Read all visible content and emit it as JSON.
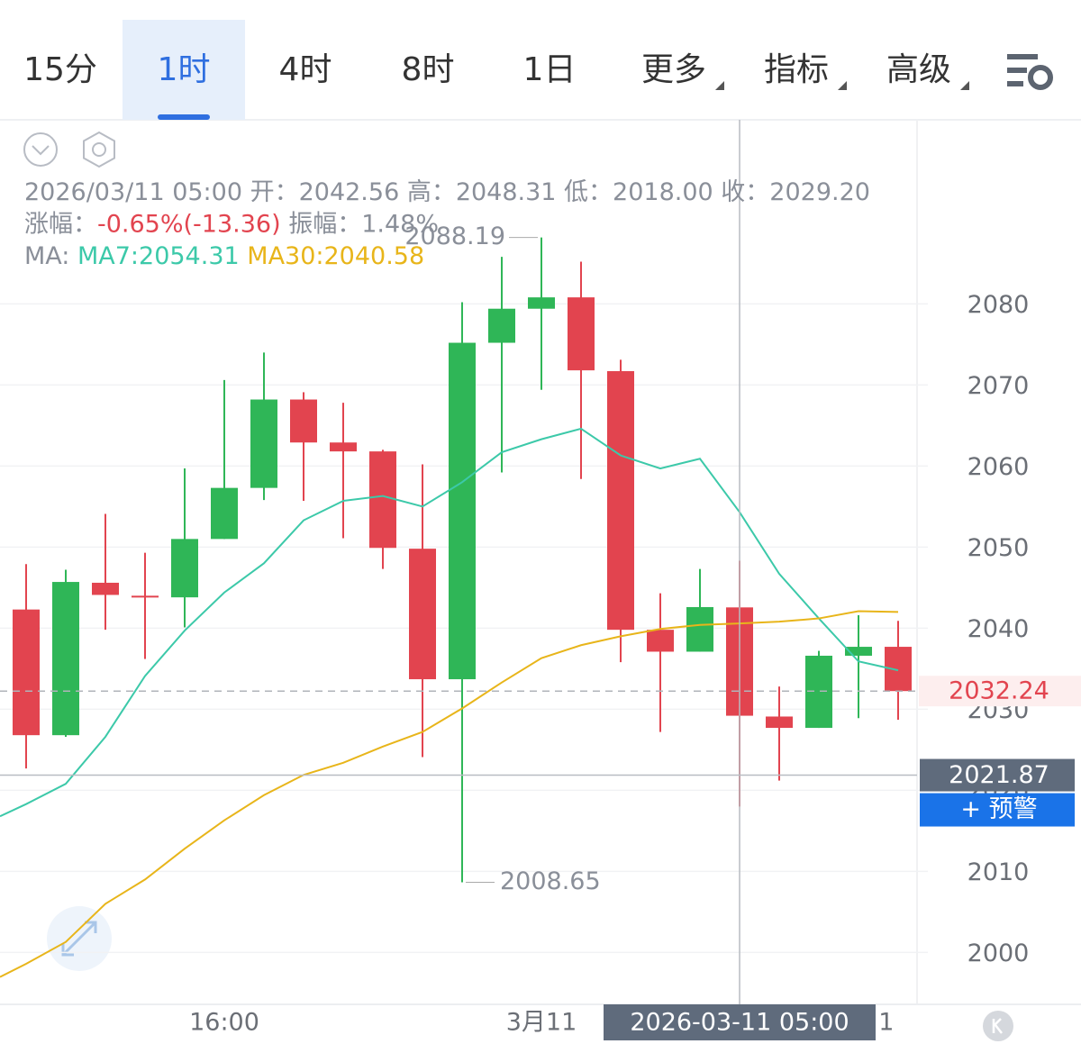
{
  "tabs": [
    "15分",
    "1时",
    "4时",
    "8时",
    "1日",
    "更多",
    "指标",
    "高级"
  ],
  "active_tab": 1,
  "info": {
    "lines": [
      [
        {
          "text": "2026/03/11 05:00 开：2042.56 高：2048.31 低：2018.00 收：2029.20",
          "color": "#8a8f99"
        }
      ],
      [
        {
          "text": "涨幅：",
          "color": "#8a8f99"
        },
        {
          "text": "-0.65%(-13.36)",
          "color": "#e2444f"
        },
        {
          "text": " 振幅：1.48%",
          "color": "#8a8f99"
        }
      ],
      [
        {
          "text": "MA: ",
          "color": "#8a8f99"
        },
        {
          "text": "MA7:2054.31",
          "color": "#3cc9a9"
        },
        {
          "text": " MA30:2040.58",
          "color": "#e8b51a"
        }
      ]
    ]
  },
  "chart_data": {
    "type": "candlestick",
    "categories": [
      null,
      null,
      null,
      null,
      null,
      null,
      null,
      null,
      null,
      null,
      null,
      null,
      null,
      null,
      null,
      null,
      null,
      null,
      null,
      null,
      null,
      null,
      null
    ],
    "open": [
      2042.3,
      2026.8,
      2045.6,
      2044.0,
      2043.8,
      2051.0,
      2057.3,
      2068.2,
      2062.9,
      2061.8,
      2049.8,
      2033.7,
      2075.2,
      2079.4,
      2080.8,
      2071.7,
      2039.8,
      2037.1,
      2042.56,
      2029.1,
      2027.7,
      2036.6,
      2037.7
    ],
    "high": [
      2047.9,
      2047.2,
      2054.1,
      2049.3,
      2059.7,
      2070.6,
      2074.0,
      2069.1,
      2067.8,
      2062.0,
      2060.2,
      2080.2,
      2085.8,
      2088.19,
      2085.2,
      2073.1,
      2044.3,
      2047.3,
      2048.31,
      2032.8,
      2037.2,
      2041.6,
      2040.9
    ],
    "low": [
      2022.7,
      2026.6,
      2039.8,
      2036.2,
      2040.1,
      2051.0,
      2055.8,
      2055.7,
      2051.1,
      2047.3,
      2024.1,
      2008.65,
      2059.2,
      2069.4,
      2058.4,
      2035.8,
      2027.2,
      2037.1,
      2018.0,
      2021.2,
      2027.7,
      2028.9,
      2028.7
    ],
    "close": [
      2026.8,
      2045.7,
      2044.1,
      2043.8,
      2051.0,
      2057.3,
      2068.2,
      2062.9,
      2061.8,
      2049.9,
      2033.7,
      2075.2,
      2079.4,
      2080.8,
      2071.8,
      2039.8,
      2037.1,
      2042.6,
      2029.2,
      2027.7,
      2036.6,
      2037.7,
      2032.24
    ],
    "up_color": "#2fb657",
    "down_color": "#e2444f",
    "series": [
      {
        "name": "MA7",
        "color": "#3cc9a9",
        "values": [
          2018.3,
          2020.8,
          2026.6,
          2034.1,
          2039.7,
          2044.4,
          2048.0,
          2053.3,
          2055.7,
          2056.3,
          2055.0,
          2058.0,
          2061.7,
          2063.3,
          2064.6,
          2061.3,
          2059.7,
          2060.9,
          2054.31,
          2046.7,
          2041.2,
          2035.9,
          2034.8
        ]
      },
      {
        "name": "MA30",
        "color": "#e8b51a",
        "values": [
          1998.6,
          2001.3,
          2006.0,
          2009.0,
          2012.8,
          2016.3,
          2019.4,
          2021.9,
          2023.4,
          2025.4,
          2027.2,
          2030.1,
          2033.3,
          2036.3,
          2037.9,
          2039.0,
          2039.9,
          2040.4,
          2040.58,
          2040.8,
          2041.2,
          2042.1,
          2042.0
        ]
      }
    ],
    "ylim": [
      1993.6,
      2102.7
    ],
    "yticks": [
      2000,
      2010,
      2020,
      2030,
      2040,
      2050,
      2060,
      2070,
      2080
    ],
    "xticks": [
      {
        "value": 5,
        "label": "16:00"
      },
      {
        "value": 13,
        "label": "3月11"
      },
      {
        "value": 21.7,
        "label": "1"
      }
    ],
    "grid": true,
    "crosshair": {
      "index": 18,
      "value": 2021.87,
      "label": "2026-03-11 05:00"
    },
    "alert_button": "+ 预警"
  }
}
